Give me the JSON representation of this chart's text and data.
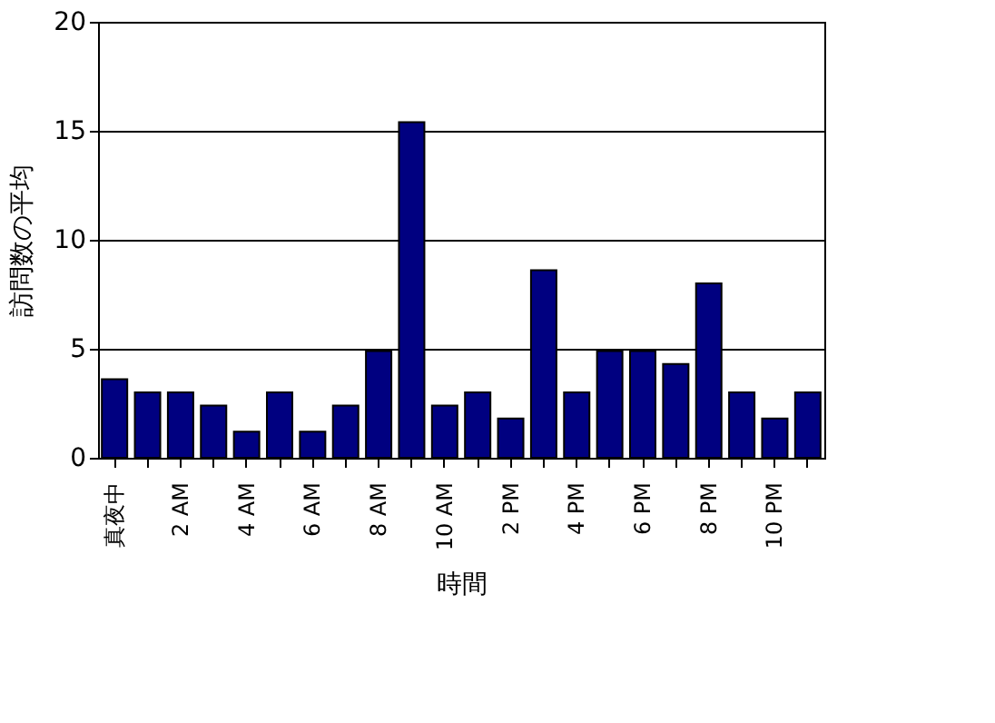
{
  "chart_data": {
    "type": "bar",
    "xlabel": "時間",
    "ylabel": "訪問数の平均",
    "categories": [
      "真夜中",
      null,
      "2 AM",
      null,
      "4 AM",
      null,
      "6 AM",
      null,
      "8 AM",
      null,
      "10 AM",
      null,
      "2 PM",
      null,
      "4 PM",
      null,
      "6 PM",
      null,
      "8 PM",
      null,
      "10 PM",
      null
    ],
    "values": [
      3.6,
      3,
      3,
      2.4,
      1.2,
      3,
      1.2,
      2.4,
      4.9,
      15.4,
      2.4,
      3,
      1.8,
      8.6,
      3,
      4.9,
      4.9,
      4.3,
      8,
      3,
      1.8,
      3
    ],
    "color": "#000080",
    "ylim": [
      0,
      20
    ],
    "yticks": [
      0,
      5,
      10,
      15,
      20
    ],
    "grid": "y"
  }
}
